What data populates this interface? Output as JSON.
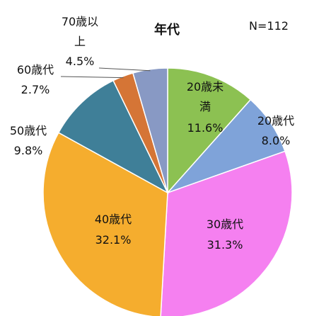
{
  "chart_data": {
    "type": "pie",
    "title": "年代",
    "note": "N=112",
    "slices": [
      {
        "label": "20歳未満",
        "value": 11.6,
        "display": "11.6%",
        "color": "#8cc152"
      },
      {
        "label": "20歳代",
        "value": 8.0,
        "display": "8.0%",
        "color": "#7fa3d9"
      },
      {
        "label": "30歳代",
        "value": 31.3,
        "display": "31.3%",
        "color": "#f580f0"
      },
      {
        "label": "40歳代",
        "value": 32.1,
        "display": "32.1%",
        "color": "#f5ad2e"
      },
      {
        "label": "50歳代",
        "value": 9.8,
        "display": "9.8%",
        "color": "#3f7f98"
      },
      {
        "label": "60歳代",
        "value": 2.7,
        "display": "2.7%",
        "color": "#d57536"
      },
      {
        "label": "70歳以上",
        "value": 4.5,
        "display": "4.5%",
        "color": "#8899c4"
      }
    ]
  }
}
